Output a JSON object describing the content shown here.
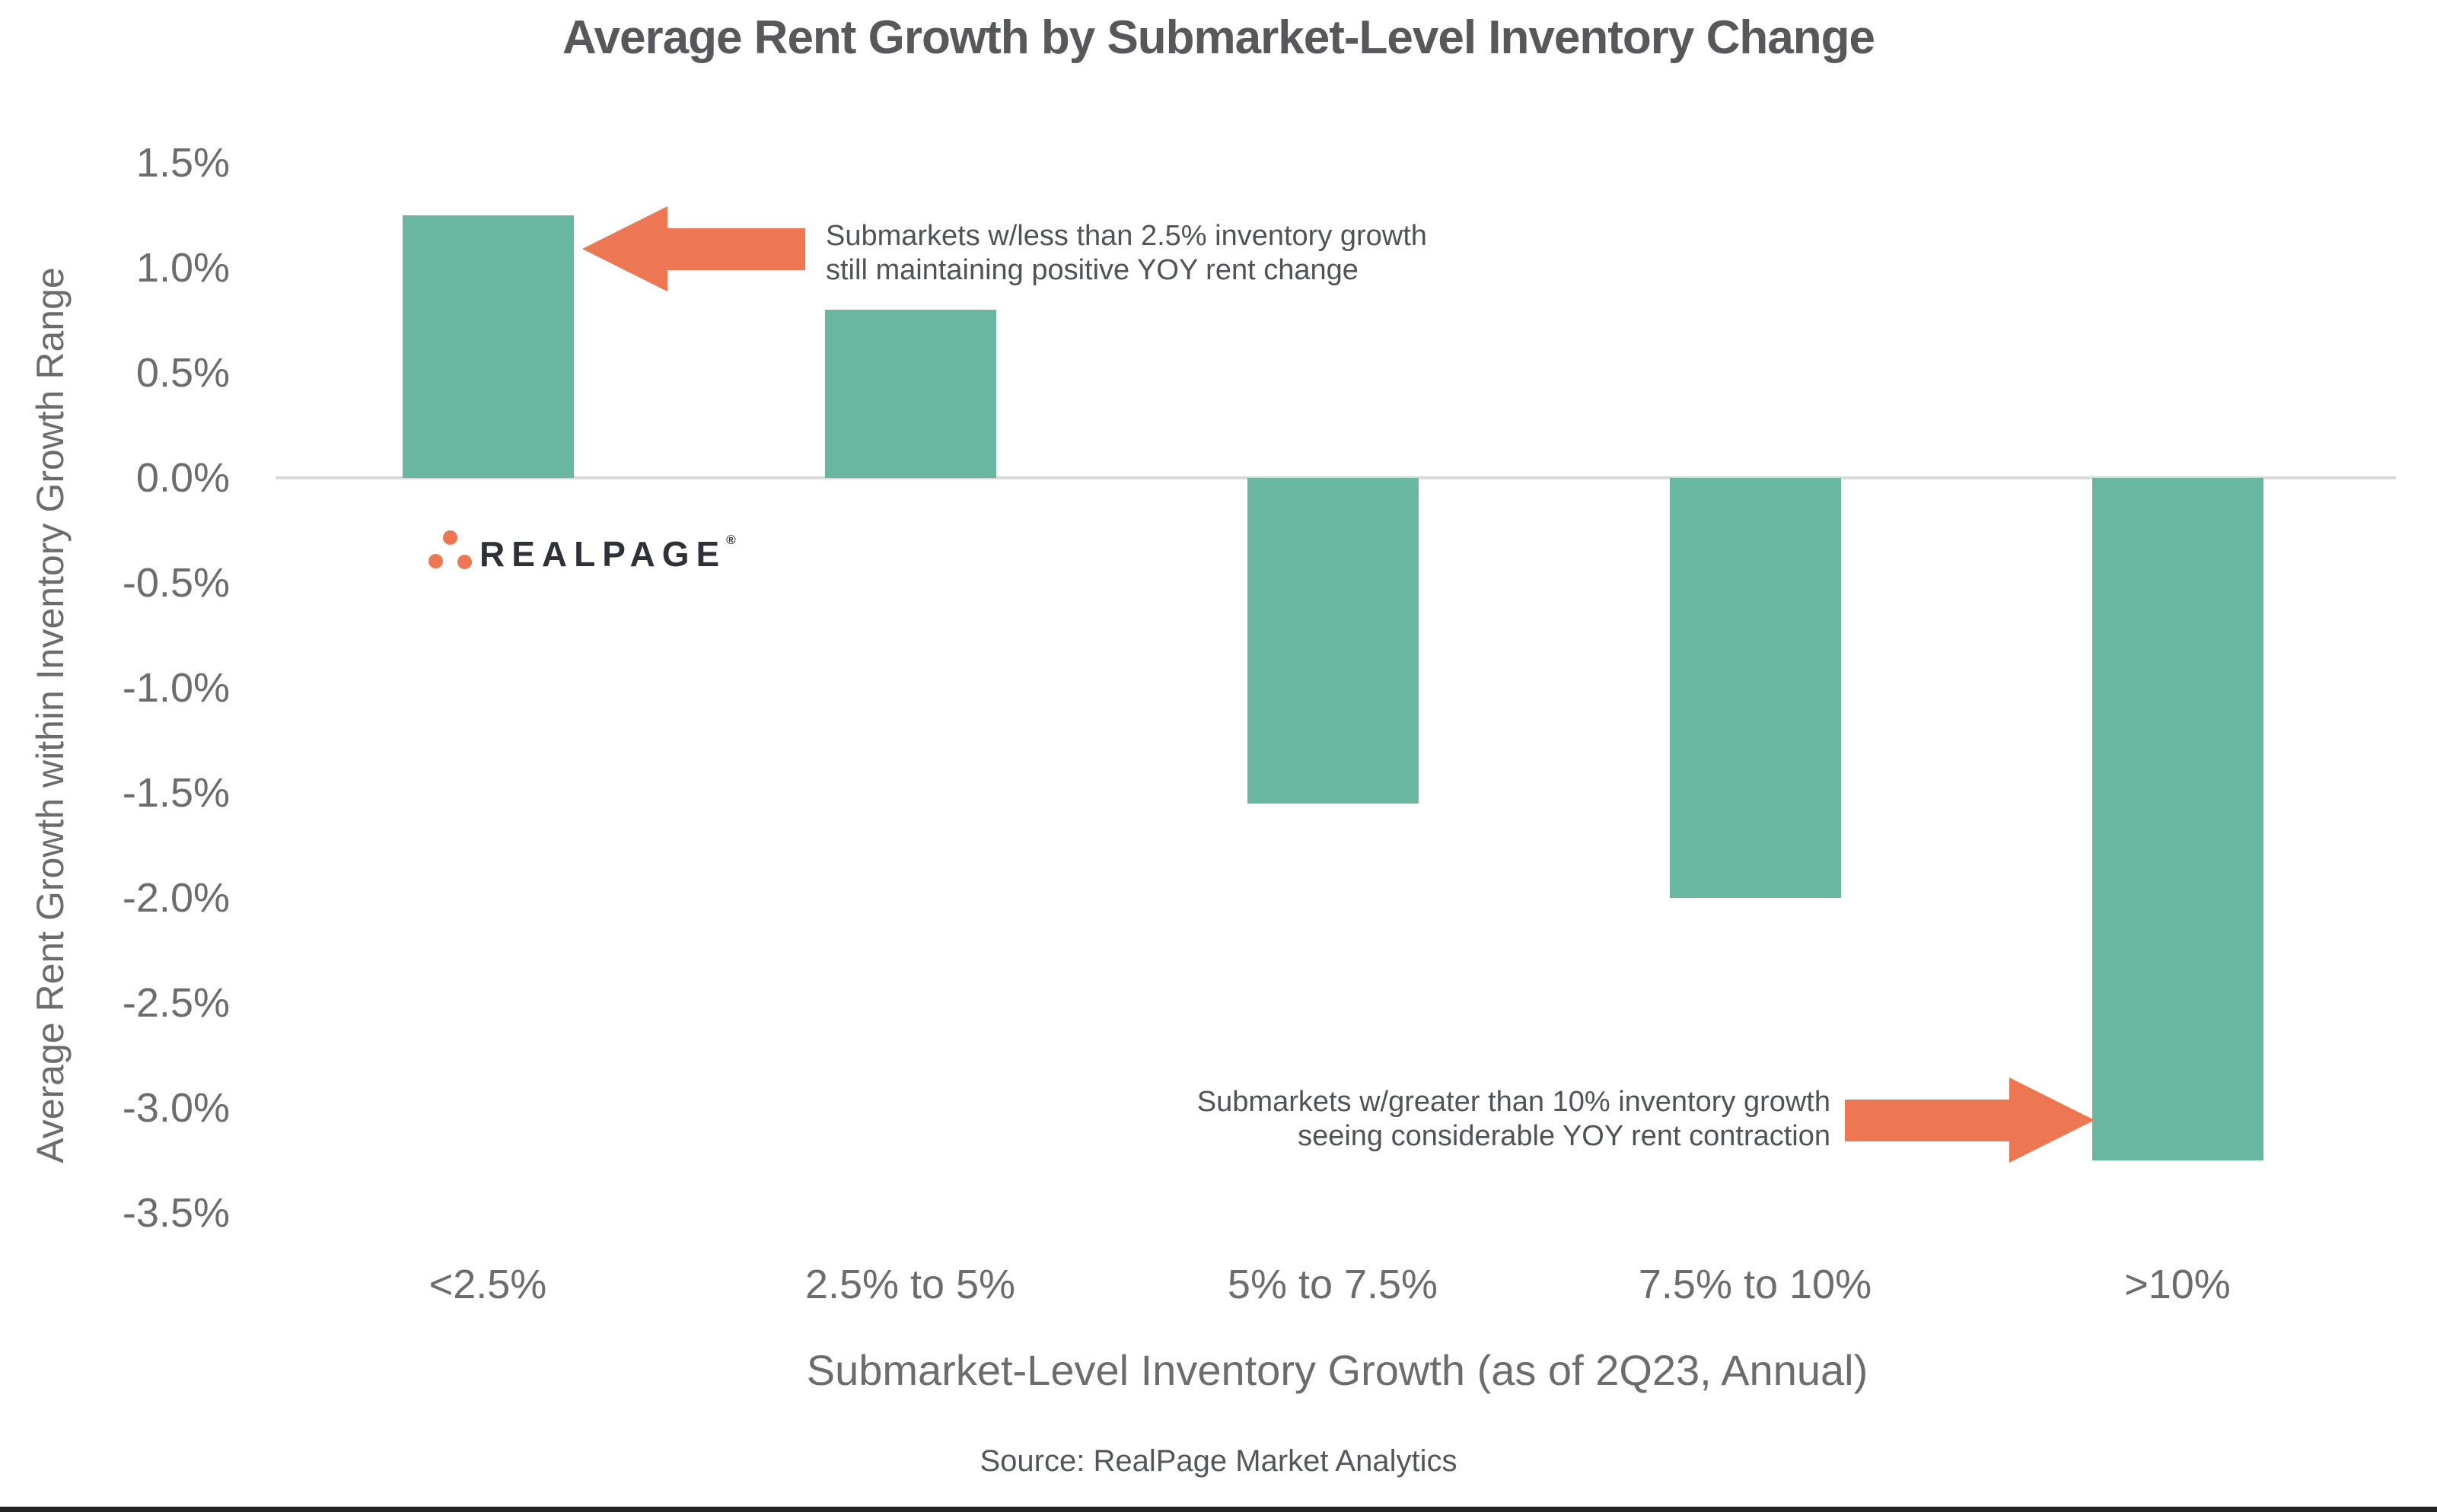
{
  "page": {
    "source_note": "Source: RealPage Market Analytics"
  },
  "logo": {
    "name": "RealPage logo",
    "text": "REALPAGE",
    "registered": "®",
    "dot_color": "#ed7753",
    "text_color": "#2e3138"
  },
  "chart_data": {
    "type": "bar",
    "title": "Average Rent Growth by Submarket-Level Inventory Change",
    "xlabel": "Submarket-Level Inventory Growth (as of 2Q23, Annual)",
    "ylabel": "Average Rent Growth within Inventory Growth Range",
    "categories": [
      "<2.5%",
      "2.5% to 5%",
      "5% to 7.5%",
      "7.5% to 10%",
      ">10%"
    ],
    "values": [
      1.25,
      0.8,
      -1.55,
      -2.0,
      -3.25
    ],
    "unit": "%",
    "ylim": [
      -3.5,
      1.5
    ],
    "ytick_step": 0.5,
    "yticks": [
      "1.5%",
      "1.0%",
      "0.5%",
      "0.0%",
      "-0.5%",
      "-1.0%",
      "-1.5%",
      "-2.0%",
      "-2.5%",
      "-3.0%",
      "-3.5%"
    ],
    "grid": "zero-baseline-only",
    "legend": "none",
    "bar_color": "#6ab7a1",
    "arrow_color": "#ed7753",
    "annotations": [
      {
        "arrow": "left",
        "lines": [
          "Submarkets w/less than 2.5% inventory growth",
          "still maintaining positive YOY rent change"
        ]
      },
      {
        "arrow": "right",
        "lines": [
          "Submarkets w/greater than 10% inventory growth",
          "seeing considerable YOY rent contraction"
        ]
      }
    ]
  }
}
